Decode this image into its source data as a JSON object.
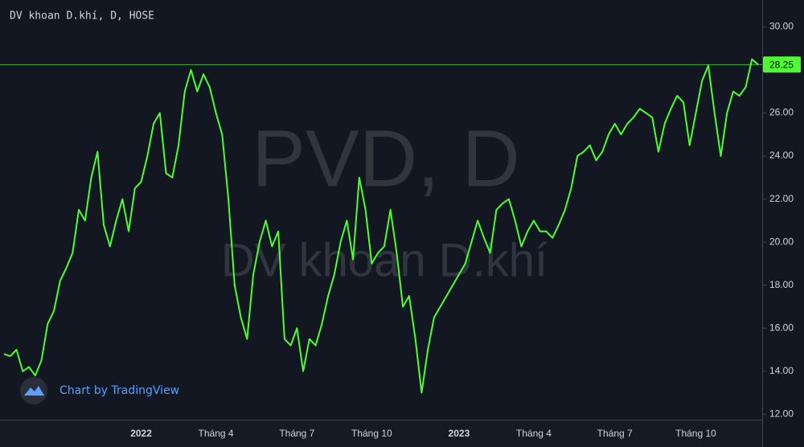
{
  "chart_data": {
    "type": "line",
    "title": "DV khoan D.khí, D, HOSE",
    "watermark": "PVD, D",
    "watermark_subtitle": "DV khoan D.khí",
    "credit": "Chart by TradingView",
    "categories": [
      null,
      null,
      null,
      null,
      null,
      null,
      null,
      null,
      null,
      null,
      null,
      null,
      null,
      null,
      null,
      null,
      null,
      null,
      null,
      null,
      null,
      null,
      "2022",
      null,
      null,
      null,
      null,
      null,
      null,
      null,
      null,
      null,
      null,
      null,
      "Tháng 4",
      null,
      null,
      null,
      null,
      null,
      null,
      null,
      null,
      null,
      null,
      null,
      null,
      "Tháng 7",
      null,
      null,
      null,
      null,
      null,
      null,
      null,
      null,
      null,
      null,
      null,
      "Tháng 10",
      null,
      null,
      null,
      null,
      null,
      null,
      null,
      null,
      null,
      null,
      null,
      null,
      null,
      "2023",
      null,
      null,
      null,
      null,
      null,
      null,
      null,
      null,
      null,
      null,
      null,
      "Tháng 4",
      null,
      null,
      null,
      null,
      null,
      null,
      null,
      null,
      null,
      null,
      null,
      null,
      "Tháng 7",
      null,
      null,
      null,
      null,
      null,
      null,
      null,
      null,
      null,
      null,
      null,
      null,
      "Tháng 10",
      null,
      null,
      null,
      null,
      null,
      null,
      null,
      null,
      null,
      null
    ],
    "series": [
      {
        "name": "PVD",
        "color": "#4cff2e",
        "values": [
          14.8,
          14.7,
          15.0,
          14.0,
          14.2,
          13.8,
          14.5,
          16.2,
          16.8,
          18.2,
          18.8,
          19.5,
          21.5,
          21.0,
          23.0,
          24.2,
          20.8,
          19.8,
          21.0,
          22.0,
          20.5,
          22.5,
          22.8,
          24.0,
          25.5,
          26.0,
          23.2,
          23.0,
          24.5,
          27.0,
          28.0,
          27.0,
          27.8,
          27.2,
          26.0,
          25.0,
          22.0,
          18.0,
          16.5,
          15.5,
          18.5,
          20.0,
          21.0,
          19.8,
          20.5,
          15.5,
          15.2,
          16.0,
          14.0,
          15.5,
          15.2,
          16.2,
          17.5,
          18.5,
          20.0,
          21.0,
          19.2,
          23.0,
          21.5,
          19.0,
          19.5,
          19.8,
          21.5,
          19.5,
          17.0,
          17.5,
          15.5,
          13.0,
          15.0,
          16.5,
          17.0,
          17.5,
          18.0,
          18.5,
          19.0,
          20.0,
          21.0,
          20.2,
          19.5,
          21.5,
          21.8,
          22.0,
          21.0,
          19.8,
          20.5,
          21.0,
          20.5,
          20.5,
          20.2,
          20.8,
          21.5,
          22.5,
          24.0,
          24.2,
          24.5,
          23.8,
          24.2,
          25.0,
          25.5,
          25.0,
          25.5,
          25.8,
          26.2,
          26.0,
          25.8,
          24.2,
          25.5,
          26.2,
          26.8,
          26.5,
          24.5,
          26.0,
          27.5,
          28.2,
          26.0,
          24.0,
          26.0,
          27.0,
          26.8,
          27.2,
          28.5,
          28.25
        ]
      }
    ],
    "price_line": 28.25,
    "price_line_color": "#4cff2e",
    "ylim": [
      11.75,
      31.25
    ],
    "yticks": [
      {
        "value": 12,
        "label": "12.00"
      },
      {
        "value": 14,
        "label": "14.00"
      },
      {
        "value": 16,
        "label": "16.00"
      },
      {
        "value": 18,
        "label": "18.00"
      },
      {
        "value": 20,
        "label": "20.00"
      },
      {
        "value": 22,
        "label": "22.00"
      },
      {
        "value": 24,
        "label": "24.00"
      },
      {
        "value": 26,
        "label": "26.00"
      },
      {
        "value": 28,
        "label": "28.00"
      },
      {
        "value": 30,
        "label": "30.00"
      }
    ],
    "bold_categories": [
      "2022",
      "2023"
    ]
  }
}
